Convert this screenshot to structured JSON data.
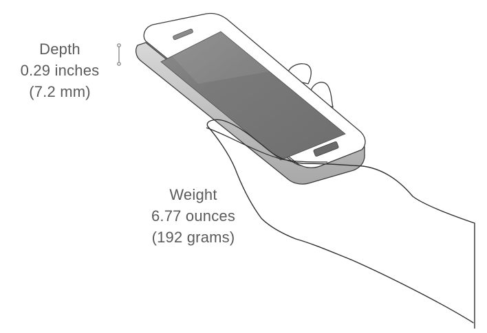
{
  "depth": {
    "label": "Depth",
    "imperial": "0.29 inches",
    "metric": "(7.2 mm)"
  },
  "weight": {
    "label": "Weight",
    "imperial": "6.77 ounces",
    "metric": "(192 grams)"
  },
  "colors": {
    "text": "#5a5a5a",
    "outline": "#3a3a3a",
    "screen": "#7a7a7a",
    "phone_body": "#ffffff",
    "phone_edge": "#bdbdbd"
  }
}
